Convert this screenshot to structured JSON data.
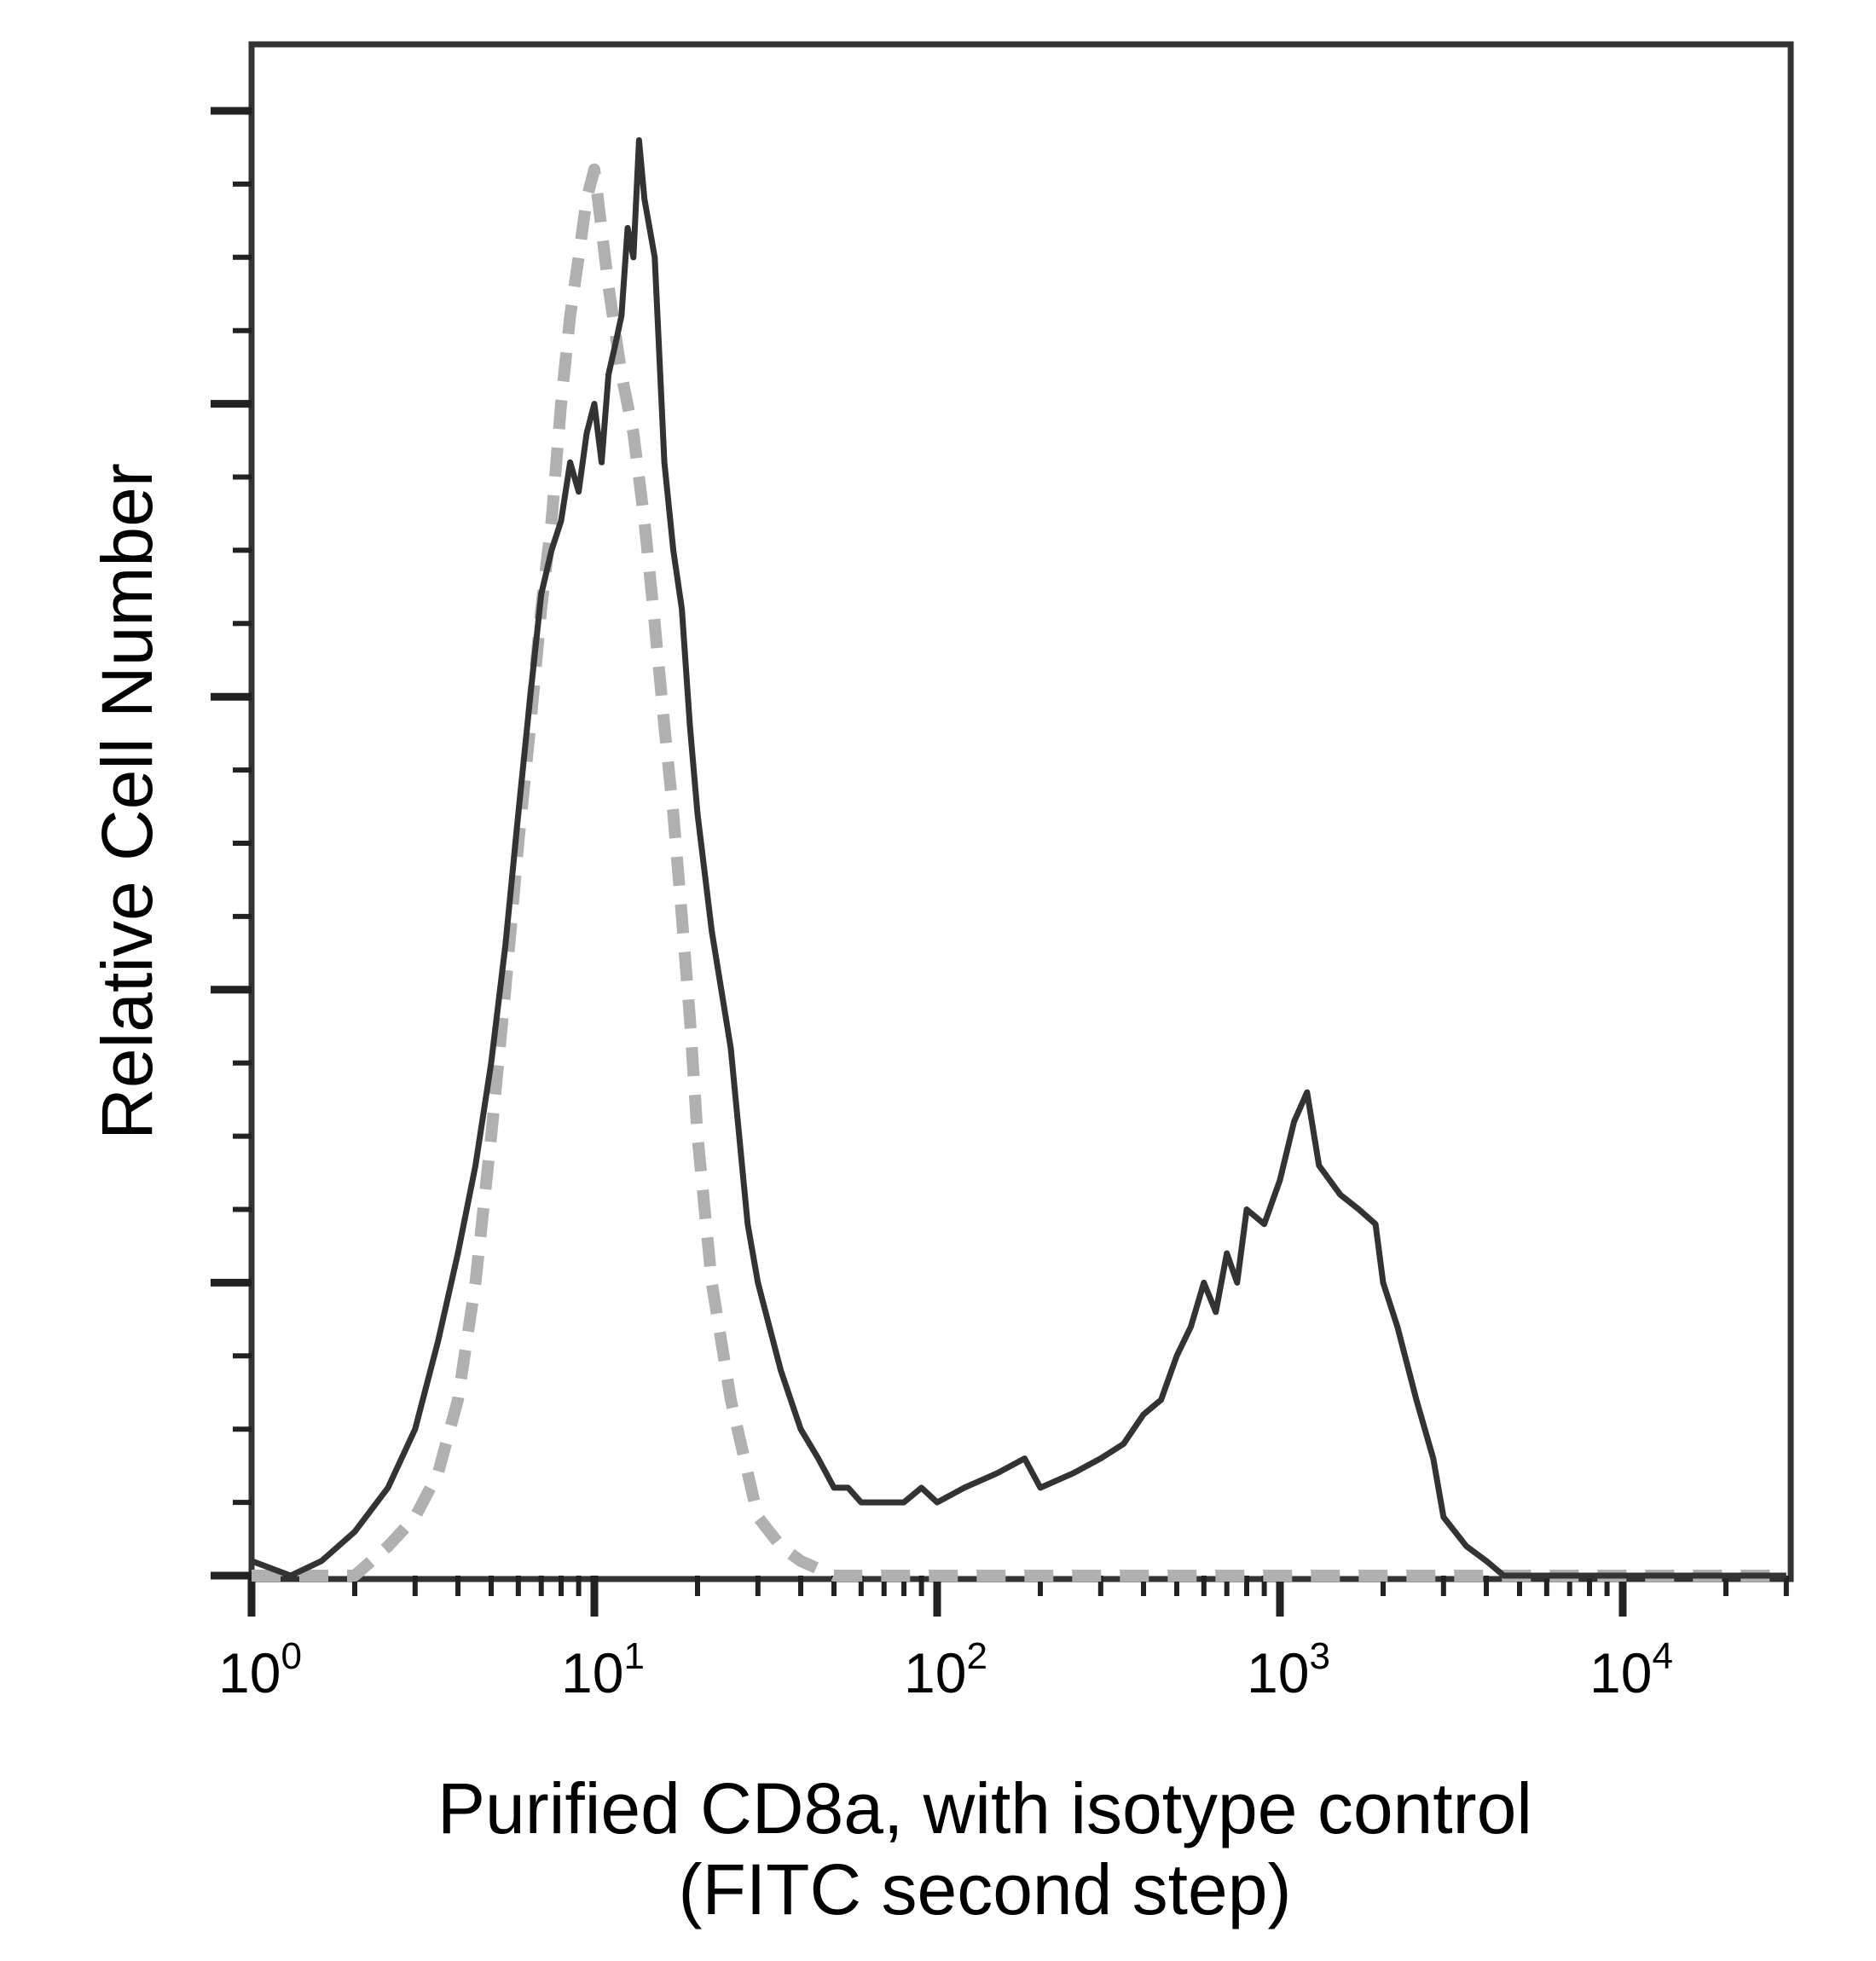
{
  "chart_data": {
    "type": "line",
    "title": "",
    "xlabel_lines": [
      "Purified CD8a, with isotype control",
      "(FITC second step)"
    ],
    "ylabel": "Relative Cell Number",
    "x_scale": "log",
    "xlim": [
      1,
      30000
    ],
    "ylim": [
      0,
      100
    ],
    "x_ticks": [
      {
        "value": 1,
        "base": "10",
        "exp": "0"
      },
      {
        "value": 10,
        "base": "10",
        "exp": "1"
      },
      {
        "value": 100,
        "base": "10",
        "exp": "2"
      },
      {
        "value": 1000,
        "base": "10",
        "exp": "3"
      },
      {
        "value": 10000,
        "base": "10",
        "exp": "4"
      }
    ],
    "y_major_ticks": [
      0,
      20,
      40,
      60,
      80,
      100
    ],
    "y_minor_ticks": [
      5,
      10,
      15,
      25,
      30,
      35,
      45,
      50,
      55,
      65,
      70,
      75,
      85,
      90,
      95
    ],
    "grid": false,
    "legend": "none",
    "series": [
      {
        "role": "stained",
        "color": "#333333",
        "style": "solid",
        "x": [
          1,
          1.3,
          1.6,
          2,
          2.5,
          3,
          3.5,
          4,
          4.5,
          5,
          5.5,
          6,
          6.5,
          7,
          7.5,
          8,
          8.5,
          9,
          9.5,
          10,
          10.5,
          11,
          11.5,
          12,
          12.5,
          13,
          13.5,
          14,
          15,
          16,
          17,
          18,
          19,
          20,
          22,
          25,
          28,
          30,
          35,
          40,
          45,
          50,
          55,
          60,
          70,
          80,
          90,
          100,
          120,
          150,
          180,
          200,
          250,
          300,
          350,
          400,
          450,
          500,
          550,
          600,
          650,
          700,
          750,
          800,
          900,
          1000,
          1100,
          1200,
          1300,
          1500,
          1700,
          1900,
          2000,
          2200,
          2500,
          2800,
          3000,
          3500,
          4000,
          4500,
          5000,
          6000,
          8000,
          10000,
          15000,
          20000,
          30000
        ],
        "y": [
          1,
          0,
          1,
          3,
          6,
          10,
          16,
          22,
          28,
          35,
          43,
          52,
          60,
          67,
          70,
          72,
          76,
          74,
          78,
          80,
          76,
          82,
          84,
          86,
          92,
          90,
          98,
          94,
          90,
          76,
          70,
          66,
          58,
          52,
          44,
          36,
          24,
          20,
          14,
          10,
          8,
          6,
          6,
          5,
          5,
          5,
          6,
          5,
          6,
          7,
          8,
          6,
          7,
          8,
          9,
          11,
          12,
          15,
          17,
          20,
          18,
          22,
          20,
          25,
          24,
          27,
          31,
          33,
          28,
          26,
          25,
          24,
          20,
          17,
          12,
          8,
          4,
          2,
          1,
          0,
          0,
          0,
          0,
          0,
          0,
          0,
          0
        ]
      },
      {
        "role": "isotype control",
        "color": "#b0b0b0",
        "style": "dashed",
        "x": [
          1,
          2,
          2.5,
          3,
          3.5,
          4,
          4.5,
          5,
          5.5,
          6,
          6.5,
          7,
          7.5,
          8,
          8.5,
          9,
          9.5,
          10,
          11,
          12,
          13,
          14,
          15,
          16,
          17,
          18,
          19,
          20,
          22,
          25,
          28,
          30,
          35,
          40,
          50,
          60,
          80,
          100,
          200,
          400,
          700,
          1000,
          2000,
          5000,
          10000,
          30000
        ],
        "y": [
          0,
          0,
          2,
          4,
          7,
          12,
          20,
          30,
          40,
          50,
          58,
          66,
          72,
          80,
          86,
          90,
          94,
          96,
          88,
          82,
          78,
          72,
          65,
          58,
          52,
          45,
          38,
          30,
          20,
          12,
          7,
          4,
          2,
          1,
          0,
          0,
          0,
          0,
          0,
          0,
          0,
          0,
          0,
          0,
          0,
          0
        ]
      }
    ]
  }
}
